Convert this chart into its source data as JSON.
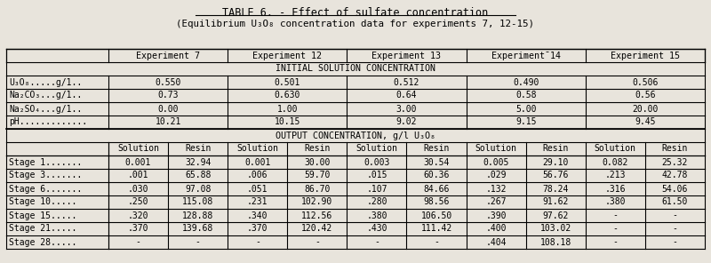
{
  "title": "TABLE 6. - Effect of sulfate concentration",
  "subtitle": "(Equilibrium U₃O₈ concentration data for experiments 7, 12-15)",
  "experiments": [
    "Experiment 7",
    "Experiment 12",
    "Experiment 13",
    "Experiment¯14",
    "Experiment 15"
  ],
  "initial_section_header": "INITIAL SOLUTION CONCENTRATION",
  "initial_rows": [
    {
      "label": "U₃O₈.....g/1..",
      "values": [
        "0.550",
        "0.501",
        "0.512",
        "0.490",
        "0.506"
      ]
    },
    {
      "label": "Na₂CO₃...g/1..",
      "values": [
        "0.73",
        "0.630",
        "0.64",
        "0.58",
        "0.56"
      ]
    },
    {
      "label": "Na₂SO₄...g/1..",
      "values": [
        "0.00",
        "1.00",
        "3.00",
        "5.00",
        "20.00"
      ]
    },
    {
      "label": "pH.............",
      "values": [
        "10.21",
        "10.15",
        "9.02",
        "9.15",
        "9.45"
      ]
    }
  ],
  "output_section_header": "OUTPUT CONCENTRATION, g/l U₃O₈",
  "output_rows": [
    {
      "label": "Stage 1.......",
      "values": [
        "0.001",
        "32.94",
        "0.001",
        "30.00",
        "0.003",
        "30.54",
        "0.005",
        "29.10",
        "0.082",
        "25.32"
      ]
    },
    {
      "label": "Stage 3.......",
      "values": [
        ".001",
        "65.88",
        ".006",
        "59.70",
        ".015",
        "60.36",
        ".029",
        "56.76",
        ".213",
        "42.78"
      ]
    },
    {
      "label": "Stage 6.......",
      "values": [
        ".030",
        "97.08",
        ".051",
        "86.70",
        ".107",
        "84.66",
        ".132",
        "78.24",
        ".316",
        "54.06"
      ]
    },
    {
      "label": "Stage 10.....",
      "values": [
        ".250",
        "115.08",
        ".231",
        "102.90",
        ".280",
        "98.56",
        ".267",
        "91.62",
        ".380",
        "61.50"
      ]
    },
    {
      "label": "Stage 15.....",
      "values": [
        ".320",
        "128.88",
        ".340",
        "112.56",
        ".380",
        "106.50",
        ".390",
        "97.62",
        "-",
        "-"
      ]
    },
    {
      "label": "Stage 21.....",
      "values": [
        ".370",
        "139.68",
        ".370",
        "120.42",
        ".430",
        "111.42",
        ".400",
        "103.02",
        "-",
        "-"
      ]
    },
    {
      "label": "Stage 28.....",
      "values": [
        "-",
        "-",
        "-",
        "-",
        "-",
        "-",
        ".404",
        "108.18",
        "-",
        "-"
      ]
    }
  ],
  "bg_color": "#e8e4dc",
  "font_size": 7.2,
  "title_font_size": 8.5
}
